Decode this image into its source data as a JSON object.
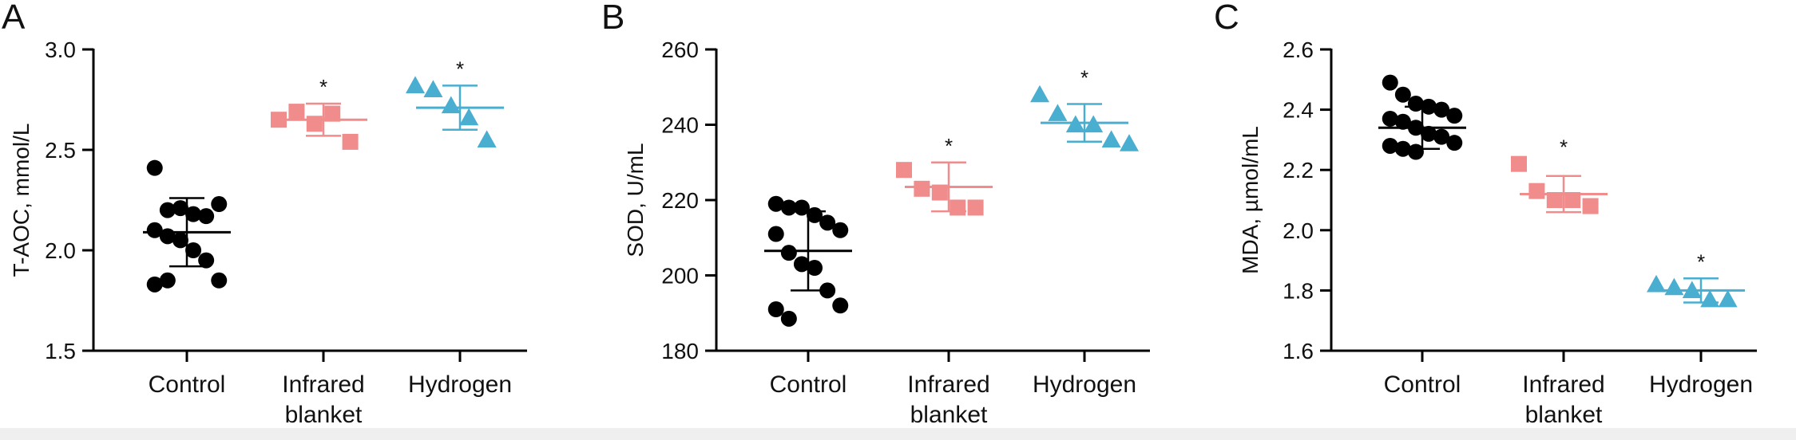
{
  "colors": {
    "Control": "#000000",
    "Infrared blanket": "#f08c8c",
    "Hydrogen": "#4aaed0"
  },
  "markers": {
    "Control": "circle",
    "Infrared blanket": "square",
    "Hydrogen": "triangle"
  },
  "chart_data": [
    {
      "type": "scatter",
      "panel": "A",
      "ylabel": "T-AOC, mmol/L",
      "ylim": [
        1.5,
        3.0
      ],
      "yticks": [
        "1.5",
        "2.0",
        "2.5",
        "3.0"
      ],
      "categories": [
        [
          "Control"
        ],
        [
          "Infrared",
          "blanket"
        ],
        [
          "Hydrogen"
        ]
      ],
      "groups": [
        {
          "name": "Control",
          "points": [
            2.41,
            2.2,
            2.21,
            2.18,
            2.17,
            2.23,
            2.1,
            2.07,
            2.05,
            2.0,
            1.95,
            1.85,
            1.83,
            1.85
          ],
          "mean": 2.09,
          "sd": 0.17,
          "sig": ""
        },
        {
          "name": "Infrared blanket",
          "points": [
            2.65,
            2.69,
            2.63,
            2.68,
            2.54
          ],
          "mean": 2.65,
          "sd": 0.08,
          "sig": "*"
        },
        {
          "name": "Hydrogen",
          "points": [
            2.82,
            2.8,
            2.72,
            2.66,
            2.55
          ],
          "mean": 2.71,
          "sd": 0.11,
          "sig": "*"
        }
      ]
    },
    {
      "type": "scatter",
      "panel": "B",
      "ylabel": "SOD, U/mL",
      "ylim": [
        180,
        260
      ],
      "yticks": [
        "180",
        "200",
        "220",
        "240",
        "260"
      ],
      "categories": [
        [
          "Control"
        ],
        [
          "Infrared",
          "blanket"
        ],
        [
          "Hydrogen"
        ]
      ],
      "groups": [
        {
          "name": "Control",
          "points": [
            219,
            218,
            218,
            216,
            214,
            212,
            211,
            206,
            203,
            202,
            196,
            192,
            191,
            188.5
          ],
          "mean": 206.5,
          "sd": 10.5,
          "sig": ""
        },
        {
          "name": "Infrared blanket",
          "points": [
            228,
            223,
            222,
            218,
            218
          ],
          "mean": 223.5,
          "sd": 6.5,
          "sig": "*"
        },
        {
          "name": "Hydrogen",
          "points": [
            248,
            243,
            240,
            240,
            236,
            235
          ],
          "mean": 240.5,
          "sd": 5,
          "sig": "*"
        }
      ]
    },
    {
      "type": "scatter",
      "panel": "C",
      "ylabel": "MDA, µmol/mL",
      "ylim": [
        1.6,
        2.6
      ],
      "yticks": [
        "1.6",
        "1.8",
        "2.0",
        "2.2",
        "2.4",
        "2.6"
      ],
      "categories": [
        [
          "Control"
        ],
        [
          "Infrared",
          "blanket"
        ],
        [
          "Hydrogen"
        ]
      ],
      "groups": [
        {
          "name": "Control",
          "points": [
            2.49,
            2.45,
            2.42,
            2.41,
            2.4,
            2.38,
            2.37,
            2.36,
            2.34,
            2.32,
            2.31,
            2.29,
            2.28,
            2.27,
            2.26
          ],
          "mean": 2.34,
          "sd": 0.07,
          "sig": ""
        },
        {
          "name": "Infrared blanket",
          "points": [
            2.22,
            2.13,
            2.1,
            2.1,
            2.08
          ],
          "mean": 2.12,
          "sd": 0.06,
          "sig": "*"
        },
        {
          "name": "Hydrogen",
          "points": [
            1.82,
            1.81,
            1.8,
            1.77,
            1.77
          ],
          "mean": 1.8,
          "sd": 0.04,
          "sig": "*"
        }
      ]
    }
  ]
}
